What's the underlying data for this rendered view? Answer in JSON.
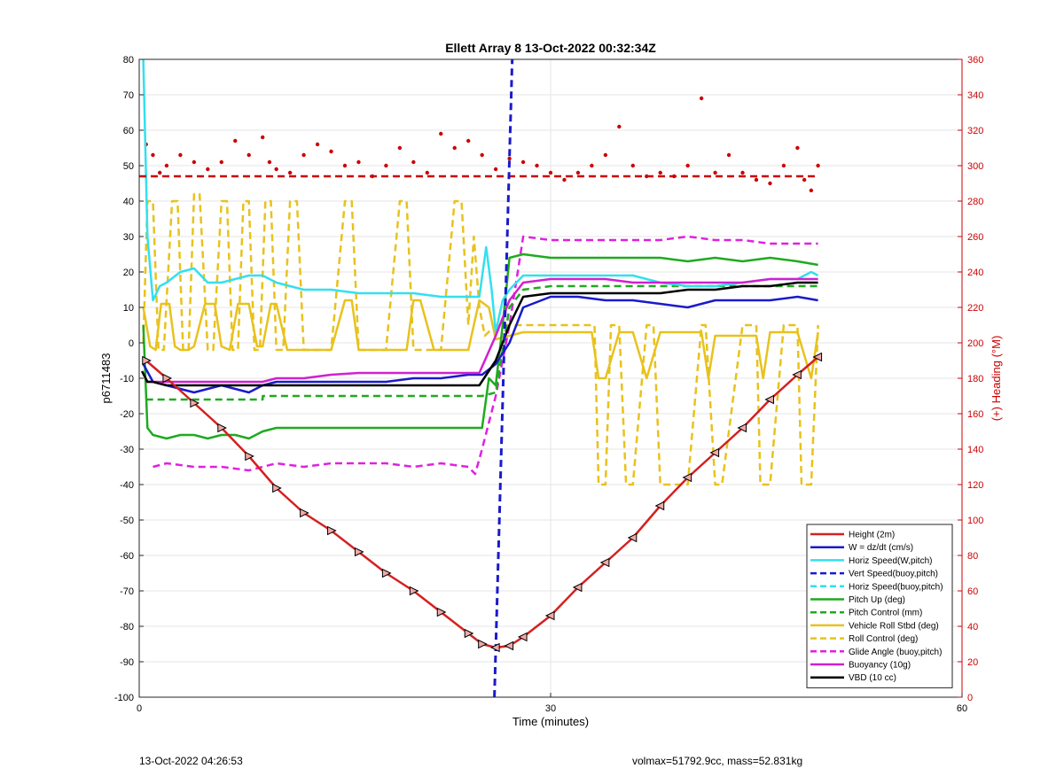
{
  "footer": {
    "left": "13-Oct-2022 04:26:53",
    "right": "volmax=51792.9cc, mass=52.831kg"
  },
  "chart_data": {
    "type": "line",
    "title": "Ellett Array 8 13-Oct-2022 00:32:34Z",
    "xlabel": "Time (minutes)",
    "ylabel": "p6711483",
    "y2label": "(+) Heading (°M)",
    "xlim": [
      0,
      60
    ],
    "ylim": [
      -100,
      80
    ],
    "y2lim": [
      0,
      360
    ],
    "xticks": [
      0,
      30,
      60
    ],
    "yticks": [
      -100,
      -90,
      -80,
      -70,
      -60,
      -50,
      -40,
      -30,
      -20,
      -10,
      0,
      10,
      20,
      30,
      40,
      50,
      60,
      70,
      80
    ],
    "y2ticks": [
      0,
      20,
      40,
      60,
      80,
      100,
      120,
      140,
      160,
      180,
      200,
      220,
      240,
      260,
      280,
      300,
      320,
      340,
      360
    ],
    "grid": true,
    "legend_position": "bottom-right",
    "colors": {
      "height": "#d42020",
      "w": "#1a1acc",
      "horiz": "#33e0ee",
      "pitch": "#1faa1f",
      "roll": "#e8c21c",
      "glide": "#e020e0",
      "buoy": "#d020d0",
      "vbd": "#000000",
      "heading": "#cc0000",
      "right_axis": "#cc0000"
    },
    "series": [
      {
        "name": "Height (2m)",
        "color": "#d42020",
        "style": "solid",
        "axis": "left",
        "x": [
          0.5,
          2,
          4,
          6,
          8,
          10,
          12,
          14,
          16,
          18,
          20,
          22,
          24,
          25,
          26,
          27,
          28,
          30,
          32,
          34,
          36,
          38,
          40,
          42,
          44,
          46,
          48,
          49.5
        ],
        "y": [
          -5,
          -10,
          -17,
          -24,
          -32,
          -41,
          -48,
          -53,
          -59,
          -65,
          -70,
          -76,
          -82,
          -85,
          -86,
          -85.5,
          -83,
          -77,
          -69,
          -62,
          -55,
          -46,
          -38,
          -31,
          -24,
          -16,
          -9,
          -4
        ]
      },
      {
        "name": "W = dz/dt (cm/s)",
        "color": "#1a1acc",
        "style": "solid",
        "axis": "left",
        "x": [
          0.3,
          1,
          2,
          3,
          4,
          5,
          6,
          7,
          8,
          9,
          10,
          12,
          14,
          16,
          18,
          20,
          22,
          24,
          25,
          26,
          27,
          28,
          30,
          32,
          34,
          36,
          38,
          40,
          42,
          44,
          46,
          48,
          49.5
        ],
        "y": [
          -6,
          -11,
          -12,
          -13,
          -14,
          -13,
          -12,
          -13,
          -14,
          -12,
          -11,
          -11,
          -11,
          -11,
          -11,
          -10,
          -10,
          -9,
          -9,
          -6,
          0,
          10,
          13,
          13,
          12,
          12,
          11,
          10,
          12,
          12,
          12,
          13,
          12
        ]
      },
      {
        "name": "Horiz Speed(W,pitch)",
        "color": "#33e0ee",
        "style": "solid",
        "axis": "left",
        "x": [
          0.3,
          0.6,
          1,
          1.5,
          2,
          3,
          4,
          5,
          6,
          7,
          8,
          9,
          10,
          12,
          14,
          16,
          18,
          20,
          22,
          24,
          24.8,
          25.3,
          25.7,
          26,
          26.5,
          27,
          28,
          30,
          32,
          34,
          36,
          38,
          40,
          42,
          44,
          46,
          48,
          49,
          49.5
        ],
        "y": [
          80,
          30,
          12,
          16,
          17,
          20,
          21,
          17,
          17,
          18,
          19,
          19,
          17,
          15,
          15,
          14,
          14,
          14,
          13,
          13,
          13,
          27,
          15,
          3,
          12,
          15,
          19,
          19,
          19,
          19,
          19,
          17,
          16,
          16,
          17,
          18,
          18,
          20,
          19
        ]
      },
      {
        "name": "Vert Speed(buoy,pitch)",
        "color": "#1a1acc",
        "style": "dashed",
        "axis": "left",
        "x": [
          25.9,
          27.2
        ],
        "y": [
          -100,
          80
        ]
      },
      {
        "name": "Horiz Speed(buoy,pitch)",
        "color": "#33e0ee",
        "style": "dashed",
        "axis": "left",
        "x": [],
        "y": []
      },
      {
        "name": "Pitch Up (deg)",
        "color": "#1faa1f",
        "style": "solid",
        "axis": "left",
        "x": [
          0.3,
          0.6,
          1,
          2,
          3,
          4,
          5,
          6,
          7,
          8,
          9,
          10,
          12,
          14,
          16,
          18,
          20,
          22,
          24,
          25,
          25.5,
          26,
          26.5,
          27,
          28,
          30,
          32,
          34,
          36,
          38,
          40,
          42,
          44,
          46,
          48,
          49.5
        ],
        "y": [
          5,
          -24,
          -26,
          -27,
          -26,
          -26,
          -27,
          -26,
          -26,
          -27,
          -25,
          -24,
          -24,
          -24,
          -24,
          -24,
          -24,
          -24,
          -24,
          -24,
          -10,
          -12,
          5,
          24,
          25,
          24,
          24,
          24,
          24,
          24,
          23,
          24,
          23,
          24,
          23,
          22
        ]
      },
      {
        "name": "Pitch Control (mm)",
        "color": "#1faa1f",
        "style": "dashed",
        "axis": "left",
        "x": [
          0.5,
          9,
          9.01,
          24.5,
          25,
          26,
          27,
          28,
          30,
          49.5
        ],
        "y": [
          -16,
          -16,
          -15,
          -15,
          -15,
          -14,
          10,
          15,
          16,
          16
        ]
      },
      {
        "name": "Vehicle Roll Stbd (deg)",
        "color": "#e8c21c",
        "style": "solid",
        "axis": "left",
        "x": [
          0.3,
          0.8,
          1.2,
          1.6,
          2.2,
          2.6,
          3,
          3.6,
          4,
          4.8,
          5.5,
          6,
          6.6,
          7.2,
          8,
          8.6,
          9,
          9.6,
          10,
          10.8,
          11.2,
          12,
          14,
          15,
          15.5,
          16,
          18,
          19.5,
          20,
          20.5,
          21.5,
          22,
          23,
          24,
          24.8,
          25.5,
          26,
          27,
          28,
          30,
          32,
          33,
          33.5,
          34,
          35,
          36,
          37,
          38,
          40,
          41,
          41.5,
          42,
          44,
          45,
          45.5,
          46,
          47,
          48,
          49,
          49.5
        ],
        "y": [
          10,
          -1,
          -2,
          11,
          11,
          -1,
          -2,
          -2,
          -1,
          11,
          11,
          -1,
          -2,
          11,
          11,
          -1,
          -1,
          11,
          11,
          -2,
          -2,
          -2,
          -2,
          12,
          12,
          -2,
          -2,
          -2,
          12,
          12,
          -2,
          -2,
          -2,
          -2,
          12,
          10,
          1,
          2,
          3,
          3,
          3,
          3,
          -10,
          -10,
          3,
          3,
          -10,
          3,
          3,
          3,
          -10,
          2,
          2,
          2,
          -10,
          3,
          3,
          3,
          -10,
          3
        ]
      },
      {
        "name": "Roll Control (deg)",
        "color": "#e8c21c",
        "style": "dashed",
        "axis": "left",
        "x": [
          0.3,
          0.6,
          1,
          1.4,
          1.8,
          2.4,
          2.8,
          3.2,
          3.6,
          4,
          4.4,
          5,
          5.4,
          6,
          6.4,
          6.8,
          7.2,
          7.6,
          8,
          8.4,
          8.8,
          9.2,
          9.6,
          10,
          10.5,
          11,
          11.5,
          12,
          14,
          15,
          15.5,
          16,
          18,
          19,
          19.5,
          20,
          22,
          23,
          23.5,
          24,
          24.4,
          24.8,
          25.2,
          26,
          30,
          32,
          33.2,
          33.5,
          34,
          34.4,
          35,
          35.5,
          36,
          37,
          37.5,
          38,
          40,
          41,
          41.3,
          42,
          42.5,
          44,
          45,
          45.3,
          46,
          47,
          48,
          48.3,
          49,
          49.5
        ],
        "y": [
          0,
          40,
          40,
          -2,
          -2,
          40,
          40,
          -2,
          -2,
          42,
          42,
          -2,
          -2,
          40,
          40,
          -2,
          -2,
          40,
          40,
          -2,
          -2,
          40,
          40,
          -2,
          -2,
          40,
          40,
          -2,
          -2,
          40,
          40,
          -2,
          -2,
          40,
          40,
          -2,
          -2,
          40,
          40,
          5,
          30,
          10,
          2,
          5,
          5,
          5,
          5,
          -40,
          -40,
          5,
          5,
          -40,
          -40,
          5,
          5,
          -40,
          -40,
          5,
          5,
          -40,
          -40,
          5,
          5,
          -40,
          -40,
          5,
          5,
          -40,
          -40,
          5
        ]
      },
      {
        "name": "Glide Angle (buoy,pitch)",
        "color": "#e020e0",
        "style": "dashed",
        "axis": "left",
        "x": [
          1,
          2,
          4,
          6,
          8,
          10,
          12,
          14,
          16,
          18,
          20,
          22,
          24,
          24.5,
          25,
          26,
          27,
          28,
          30,
          32,
          34,
          36,
          38,
          40,
          42,
          44,
          46,
          48,
          49.5
        ],
        "y": [
          -35,
          -34,
          -35,
          -35,
          -36,
          -34,
          -35,
          -34,
          -34,
          -34,
          -35,
          -34,
          -35,
          -37,
          -30,
          -15,
          5,
          30,
          29,
          29,
          29,
          29,
          29,
          30,
          29,
          29,
          28,
          28,
          28
        ]
      },
      {
        "name": "Buoyancy (10g)",
        "color": "#d020d0",
        "style": "solid",
        "axis": "left",
        "x": [
          0.5,
          6,
          9,
          10,
          12,
          14,
          16,
          18,
          20,
          22,
          24,
          24.8,
          26,
          27,
          28,
          30,
          32,
          34,
          36,
          38,
          40,
          42,
          44,
          46,
          48,
          49.5
        ],
        "y": [
          -11,
          -11,
          -11,
          -10,
          -10,
          -9,
          -8.5,
          -8.5,
          -8.5,
          -8.5,
          -8.5,
          -8.5,
          2,
          12,
          17,
          18,
          18,
          18,
          17,
          17,
          17,
          17,
          17,
          18,
          18,
          18
        ]
      },
      {
        "name": "VBD (10 cc)",
        "color": "#000000",
        "style": "solid",
        "axis": "left",
        "x": [
          0.2,
          0.6,
          1,
          2,
          6,
          10,
          14,
          18,
          22,
          24.8,
          26,
          27,
          28,
          30,
          34,
          38,
          40,
          42,
          44,
          46,
          48,
          49.5
        ],
        "y": [
          -8,
          -11,
          -11,
          -12,
          -12,
          -12,
          -12,
          -12,
          -12,
          -12,
          -5,
          5,
          13,
          14,
          14,
          14,
          15,
          15,
          16,
          16,
          17,
          17
        ]
      },
      {
        "name": "Heading",
        "color": "#cc0000",
        "style": "dashed",
        "axis": "right",
        "x": [
          0,
          49.5
        ],
        "y": [
          294,
          294
        ]
      }
    ],
    "heading_points": {
      "axis": "right",
      "x": [
        0.5,
        1,
        1.5,
        2,
        3,
        4,
        5,
        6,
        7,
        8,
        9,
        9.5,
        10,
        11,
        12,
        13,
        14,
        15,
        16,
        17,
        18,
        19,
        20,
        21,
        22,
        23,
        24,
        25,
        26,
        27,
        28,
        29,
        30,
        31,
        32,
        33,
        34,
        35,
        36,
        37,
        38,
        39,
        40,
        41,
        42,
        43,
        44,
        45,
        46,
        47,
        48,
        48.5,
        49,
        49.5
      ],
      "y": [
        312,
        306,
        296,
        300,
        306,
        302,
        298,
        302,
        314,
        306,
        316,
        302,
        298,
        296,
        306,
        312,
        308,
        300,
        302,
        294,
        300,
        310,
        302,
        296,
        318,
        310,
        314,
        306,
        298,
        304,
        302,
        300,
        296,
        292,
        296,
        300,
        306,
        322,
        300,
        294,
        296,
        294,
        300,
        338,
        296,
        306,
        296,
        292,
        290,
        300,
        310,
        292,
        286,
        300
      ]
    }
  }
}
